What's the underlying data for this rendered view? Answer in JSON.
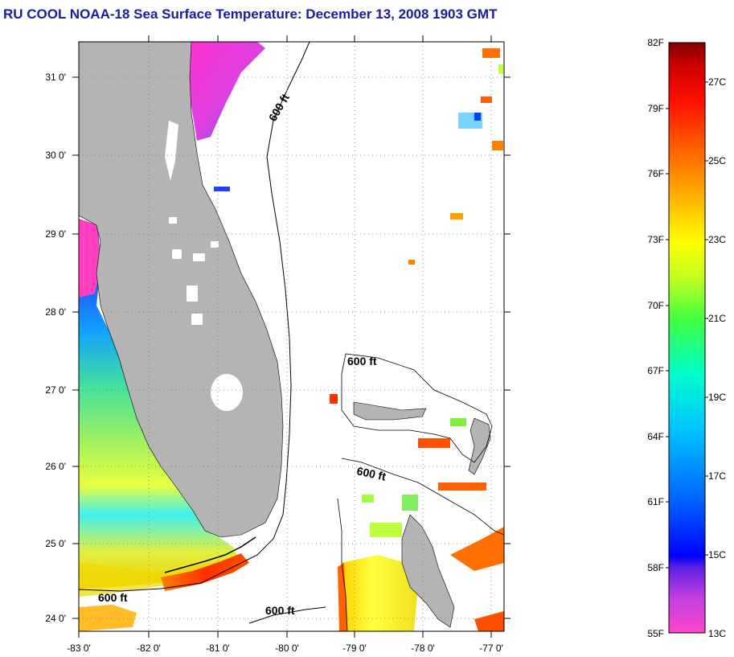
{
  "title": "RU COOL  NOAA-18  Sea Surface Temperature:  December 13, 2008 1903 GMT",
  "map": {
    "lat_ticks": [
      {
        "value": 31,
        "label": "31 0'"
      },
      {
        "value": 30,
        "label": "30 0'"
      },
      {
        "value": 29,
        "label": "29 0'"
      },
      {
        "value": 28,
        "label": "28 0'"
      },
      {
        "value": 27,
        "label": "27 0'"
      },
      {
        "value": 26,
        "label": "26 0'"
      },
      {
        "value": 25,
        "label": "25 0'"
      },
      {
        "value": 24,
        "label": "24 0'"
      }
    ],
    "lon_ticks": [
      {
        "value": -83,
        "label": "-83 0'"
      },
      {
        "value": -82,
        "label": "-82 0'"
      },
      {
        "value": -81,
        "label": "-81 0'"
      },
      {
        "value": -80,
        "label": "-80 0'"
      },
      {
        "value": -79,
        "label": "-79 0'"
      },
      {
        "value": -78,
        "label": "-78 0'"
      },
      {
        "value": -77,
        "label": "-77 0'"
      }
    ],
    "lat_range": [
      23.9,
      31.4
    ],
    "lon_range": [
      -83.0,
      -76.9
    ],
    "contour_labels": [
      "600 ft",
      "600 ft",
      "600 ft",
      "600 ft",
      "600 ft"
    ],
    "land_color": "#b4b4b4"
  },
  "colorbar": {
    "fahrenheit_labels": [
      "82F",
      "79F",
      "76F",
      "73F",
      "70F",
      "67F",
      "64F",
      "61F",
      "58F",
      "55F"
    ],
    "celsius_labels": [
      "27C",
      "25C",
      "23C",
      "21C",
      "19C",
      "17C",
      "15C",
      "13C"
    ],
    "range_f": [
      55,
      82
    ]
  }
}
